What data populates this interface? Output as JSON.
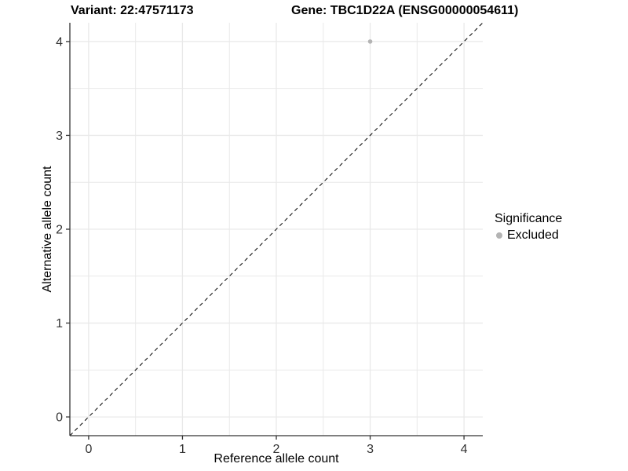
{
  "chart_data": {
    "type": "scatter",
    "titles": {
      "variant": "Variant: 22:47571173",
      "gene": "Gene: TBC1D22A (ENSG00000054611)"
    },
    "xlabel": "Reference allele count",
    "ylabel": "Alternative allele count",
    "xlim": [
      -0.2,
      4.2
    ],
    "ylim": [
      -0.2,
      4.2
    ],
    "x_ticks": [
      0,
      1,
      2,
      3,
      4
    ],
    "y_ticks": [
      0,
      1,
      2,
      3,
      4
    ],
    "x_minor_ticks": [
      0.5,
      1.5,
      2.5,
      3.5
    ],
    "y_minor_ticks": [
      0.5,
      1.5,
      2.5,
      3.5
    ],
    "grid": true,
    "identity_line": {
      "style": "dashed",
      "from": [
        -0.2,
        -0.2
      ],
      "to": [
        4.2,
        4.2
      ]
    },
    "points": [
      {
        "x": 3,
        "y": 4,
        "significance": "Excluded"
      }
    ],
    "legend": {
      "position": "right",
      "title": "Significance",
      "entries": [
        {
          "label": "Excluded",
          "color": "#b4b4b4"
        }
      ]
    },
    "colors": {
      "background": "#ffffff",
      "grid": "#e9e9e9",
      "axis": "#333333",
      "tick_label": "#333333",
      "text": "#000000",
      "point": "#b4b4b4",
      "identity_line": "#000000"
    }
  }
}
